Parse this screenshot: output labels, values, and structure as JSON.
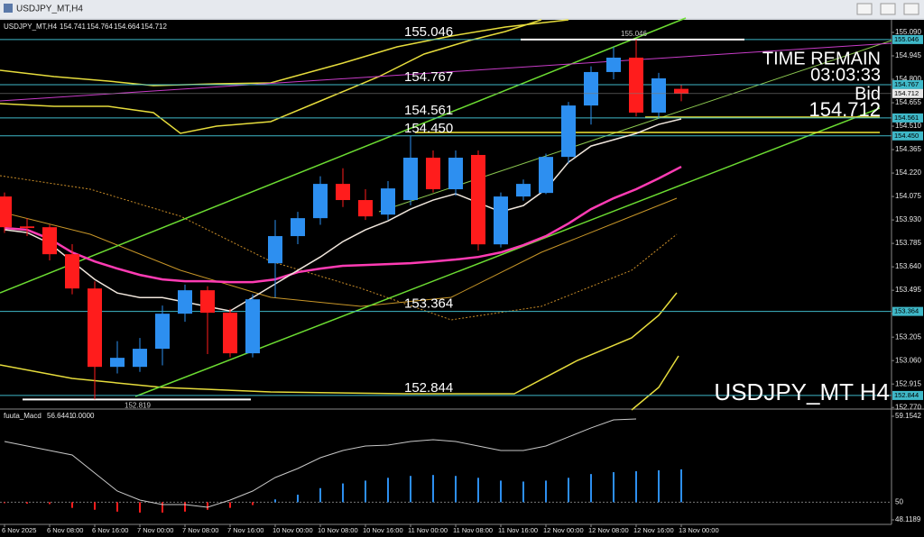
{
  "chart_data": {
    "type": "candlestick",
    "symbol": "USDJPY_MT,H4",
    "categories": [
      "6 Nov 2025",
      null,
      "6 Nov 08:00",
      null,
      "6 Nov 16:00",
      null,
      "7 Nov 00:00",
      null,
      "7 Nov 08:00",
      null,
      "7 Nov 16:00",
      null,
      "10 Nov 00:00",
      null,
      "10 Nov 08:00",
      null,
      "10 Nov 16:00",
      null,
      "11 Nov 00:00",
      null,
      "11 Nov 08:00",
      null,
      "11 Nov 16:00",
      null,
      "12 Nov 00:00",
      null,
      "12 Nov 08:00",
      null,
      "12 Nov 16:00",
      null,
      "13 Nov 00:00"
    ],
    "open": [
      154.075,
      153.89,
      153.885,
      153.718,
      153.506,
      153.021,
      153.021,
      153.133,
      153.35,
      153.495,
      153.356,
      153.105,
      153.662,
      153.83,
      153.941,
      154.153,
      154.053,
      153.963,
      154.053,
      154.315,
      154.12,
      154.332,
      153.779,
      154.075,
      154.097,
      154.32,
      154.638,
      154.845,
      154.934,
      154.594,
      154.741
    ],
    "high": [
      154.1,
      153.94,
      153.9,
      153.78,
      153.55,
      153.18,
      153.2,
      153.4,
      153.53,
      153.52,
      153.38,
      153.47,
      153.93,
      153.98,
      154.2,
      154.25,
      154.12,
      154.17,
      154.45,
      154.36,
      154.36,
      154.36,
      154.1,
      154.18,
      154.34,
      154.66,
      154.88,
      155.0,
      155.046,
      154.84,
      154.764
    ],
    "low": [
      153.85,
      153.83,
      153.68,
      153.47,
      152.82,
      152.98,
      152.99,
      153.03,
      153.3,
      153.1,
      153.08,
      153.08,
      153.45,
      153.78,
      153.9,
      154.01,
      153.93,
      153.93,
      154.02,
      154.1,
      154.08,
      153.74,
      153.76,
      154.05,
      154.09,
      154.28,
      154.52,
      154.8,
      154.57,
      154.56,
      154.664
    ],
    "close": [
      153.885,
      153.88,
      153.718,
      153.506,
      153.021,
      153.077,
      153.133,
      153.35,
      153.495,
      153.356,
      153.105,
      153.439,
      153.83,
      153.941,
      154.153,
      154.053,
      153.952,
      154.125,
      154.315,
      154.12,
      154.315,
      153.779,
      154.075,
      154.153,
      154.32,
      154.638,
      154.845,
      154.934,
      154.594,
      154.806,
      154.712
    ],
    "up_color": "#2d8ff0",
    "down_color": "#ff1c1c",
    "ylim": [
      152.76,
      155.168
    ],
    "yticks": [
      {
        "value": 155.09,
        "label": "155.090"
      },
      {
        "value": 154.945,
        "label": "154.945"
      },
      {
        "value": 154.8,
        "label": "154.800"
      },
      {
        "value": 154.655,
        "label": "154.655"
      },
      {
        "value": 154.51,
        "label": "154.510"
      },
      154.365,
      {
        "value": 154.22,
        "label": "154.220"
      },
      154.075,
      {
        "value": 153.93,
        "label": "153.930"
      },
      153.785,
      {
        "value": 153.64,
        "label": "153.640"
      },
      153.495,
      {
        "value": 153.35,
        "label": "153.350"
      },
      153.205,
      {
        "value": 153.06,
        "label": "153.060"
      },
      152.915,
      {
        "value": 152.77,
        "label": "152.770"
      }
    ],
    "lines": [
      {
        "color": "#ff3cb4",
        "values": [
          153.88,
          153.869,
          153.813,
          153.729,
          153.673,
          153.629,
          153.59,
          153.562,
          153.551,
          153.551,
          153.545,
          153.545,
          153.562,
          153.607,
          153.629,
          153.646,
          153.651,
          153.657,
          153.662,
          153.673,
          153.685,
          153.701,
          153.729,
          153.774,
          153.83,
          153.908,
          153.997,
          154.064,
          154.12,
          154.187,
          154.259
        ]
      },
      {
        "color": "#f0e6dc",
        "values": [
          153.869,
          153.852,
          153.785,
          153.673,
          153.562,
          153.478,
          153.45,
          153.45,
          153.422,
          153.394,
          153.367,
          153.45,
          153.534,
          153.618,
          153.701,
          153.796,
          153.869,
          153.924,
          153.997,
          154.053,
          154.092,
          154.036,
          153.98,
          154.019,
          154.12,
          154.287,
          154.387,
          154.426,
          154.465,
          154.521,
          154.555
        ]
      }
    ],
    "levels": {
      "values": [
        155.046,
        154.767,
        154.561,
        154.45,
        153.364,
        152.844
      ],
      "value_labels": [
        "155.046",
        "154.767",
        "154.561",
        "154.450",
        "153.364",
        "152.844"
      ],
      "color": "#3fb8c8"
    },
    "session_high": 155.046,
    "session_low": 152.819,
    "bid_label": "Bid",
    "bid": 154.712,
    "time_remain_label": "TIME REMAIN",
    "time_remain": "03:03:33",
    "watermark": "USDJPY_MT H4",
    "macd": {
      "name": "fuuta_Macd",
      "readout": {
        "values": [
          56.6441,
          0
        ],
        "value_labels": [
          "56.6441",
          "0.0000"
        ]
      },
      "ylim": [
        48.1189,
        59.1542
      ],
      "yticks": [
        {
          "value": 59.1542,
          "label": "59.1542"
        },
        50,
        {
          "value": 48.1189,
          "label": "48.1189"
        }
      ],
      "baseline": 50,
      "line_color": "#c8c8c8",
      "line": [
        56.47,
        55.99,
        55.51,
        55.03,
        53.11,
        51.19,
        50.23,
        49.75,
        49.75,
        49.46,
        50.23,
        51.19,
        52.63,
        53.59,
        54.74,
        55.51,
        55.99,
        56.08,
        56.47,
        56.66,
        56.47,
        55.99,
        55.51,
        55.51,
        55.99,
        56.95,
        57.91,
        58.77,
        58.87,
        null,
        null
      ],
      "histogram": [
        49.9,
        49.85,
        49.8,
        49.4,
        49.2,
        49.0,
        48.9,
        48.9,
        49.0,
        49.2,
        49.4,
        49.7,
        50.3,
        50.8,
        51.5,
        52.0,
        52.3,
        52.6,
        52.8,
        52.9,
        52.8,
        52.6,
        52.3,
        52.2,
        52.3,
        52.6,
        53.0,
        53.2,
        53.3,
        53.4,
        53.5
      ]
    }
  }
}
